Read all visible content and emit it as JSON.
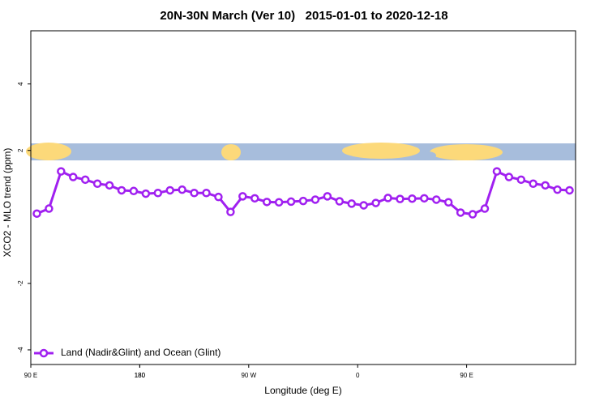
{
  "chart_data": {
    "type": "line",
    "title": "20N-30N March (Ver 10)   2015-01-01 to 2020-12-18",
    "x_label": "Longitude (deg E)",
    "y_label": "XCO2 - MLO trend (ppm)",
    "x": [
      95,
      105,
      115,
      125,
      135,
      145,
      155,
      165,
      175,
      185,
      195,
      205,
      215,
      225,
      235,
      245,
      255,
      265,
      275,
      285,
      295,
      305,
      315,
      325,
      335,
      345,
      355,
      365,
      375,
      385,
      395,
      405,
      415,
      425,
      435,
      445,
      455,
      465,
      475,
      485,
      495,
      505,
      515,
      525,
      535
    ],
    "series": [
      {
        "name": "Land (Nadir&Glint) and Ocean (Glint)",
        "color": "#a020f0",
        "values": [
          0.1,
          0.25,
          1.37,
          1.2,
          1.12,
          1.0,
          0.95,
          0.8,
          0.78,
          0.7,
          0.72,
          0.8,
          0.82,
          0.72,
          0.72,
          0.6,
          0.15,
          0.62,
          0.56,
          0.45,
          0.44,
          0.46,
          0.48,
          0.52,
          0.62,
          0.47,
          0.4,
          0.35,
          0.42,
          0.57,
          0.54,
          0.55,
          0.56,
          0.52,
          0.44,
          0.13,
          0.08,
          0.25,
          1.37,
          1.2,
          1.12,
          1.0,
          0.95,
          0.82,
          0.8
        ]
      }
    ],
    "xlim": [
      90,
      540
    ],
    "xticks": [
      {
        "value": 90,
        "label": "90 E"
      },
      180,
      {
        "value": 270,
        "label": "90 W"
      },
      {
        "value": 360,
        "label": "0"
      },
      {
        "value": 450,
        "label": "90 E"
      },
      180.0001
    ],
    "ylim": [
      -4.44,
      5.6
    ],
    "yticks": [
      -4,
      -2,
      2,
      4
    ],
    "legend": "bottom-left"
  }
}
